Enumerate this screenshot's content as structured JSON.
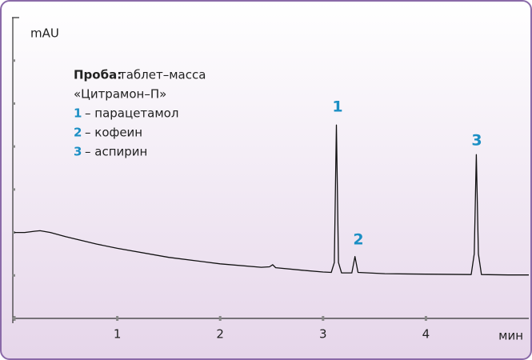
{
  "chart_data": {
    "type": "line",
    "y_label": "mAU",
    "x_label": "мин",
    "legend": {
      "sample_label": "Проба:",
      "sample_lines": [
        "таблет–масса",
        "«Цитрамон–П»"
      ],
      "items": [
        {
          "number": "1",
          "text": "– парацетамол"
        },
        {
          "number": "2",
          "text": "– кофеин"
        },
        {
          "number": "3",
          "text": "– аспирин"
        }
      ]
    },
    "peak_labels": [
      "1",
      "2",
      "3"
    ],
    "x": [
      0,
      0.1,
      0.2,
      0.25,
      0.35,
      0.5,
      0.8,
      1.0,
      1.5,
      2.0,
      2.4,
      2.48,
      2.51,
      2.54,
      2.8,
      3.0,
      3.08,
      3.11,
      3.13,
      3.15,
      3.18,
      3.28,
      3.31,
      3.34,
      3.6,
      4.0,
      4.44,
      4.47,
      4.49,
      4.51,
      4.54,
      4.8,
      5.0
    ],
    "series": [
      {
        "color": "#111111",
        "values": [
          2.0,
          2.0,
          2.03,
          2.04,
          2.0,
          1.9,
          1.73,
          1.63,
          1.42,
          1.27,
          1.19,
          1.2,
          1.25,
          1.18,
          1.12,
          1.08,
          1.07,
          1.3,
          4.5,
          1.3,
          1.06,
          1.06,
          1.44,
          1.07,
          1.04,
          1.03,
          1.02,
          1.5,
          3.81,
          1.5,
          1.02,
          1.01,
          1.01
        ]
      }
    ],
    "xlim": [
      0,
      5
    ],
    "xticks": [
      0,
      1,
      2,
      3,
      4
    ],
    "label_first_xtick": false,
    "ylim": [
      0,
      7
    ],
    "yticks": [
      0,
      1,
      2,
      3,
      4,
      5,
      6,
      7
    ],
    "ytick_labels": false
  }
}
